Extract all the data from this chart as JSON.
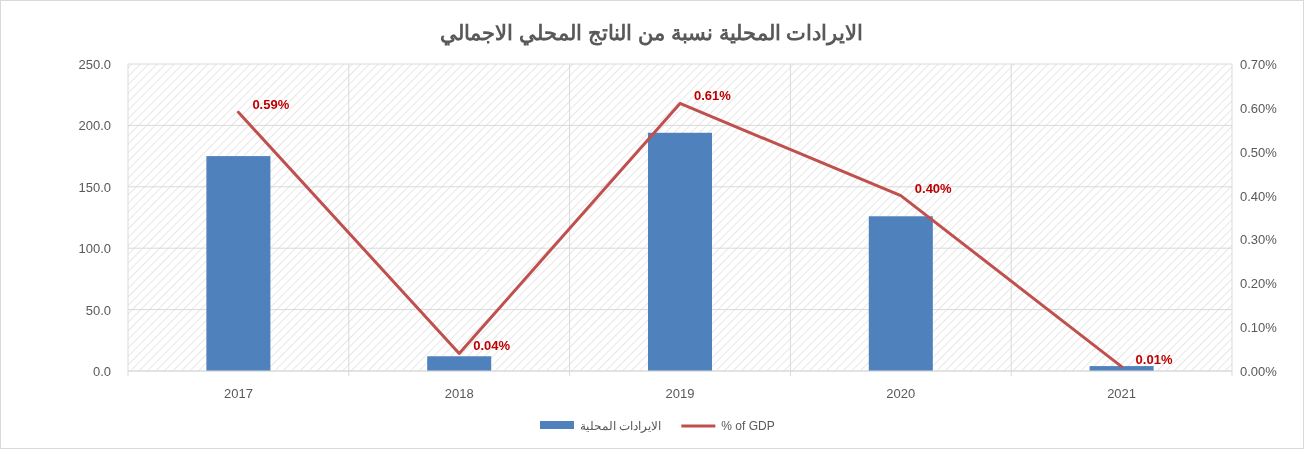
{
  "chart_data": {
    "type": "bar",
    "title": "الايرادات المحلية نسبة من الناتج المحلي الاجمالي",
    "categories": [
      "2017",
      "2018",
      "2019",
      "2020",
      "2021"
    ],
    "series": [
      {
        "name": "الايرادات المحلية",
        "color": "#4f81bd",
        "values": [
          175,
          12,
          194,
          126,
          4
        ]
      },
      {
        "name": "% of GDP",
        "type": "line",
        "axis": "y2",
        "color": "#c0504d",
        "values": [
          0.59,
          0.04,
          0.61,
          0.4,
          0.01
        ],
        "value_labels": [
          "0.59%",
          "0.04%",
          "0.61%",
          "0.40%",
          "0.01%"
        ]
      }
    ],
    "ylim": [
      0,
      250
    ],
    "yticks": [
      {
        "value": 0,
        "label": "0.0"
      },
      {
        "value": 50,
        "label": "50.0"
      },
      {
        "value": 100,
        "label": "100.0"
      },
      {
        "value": 150,
        "label": "150.0"
      },
      {
        "value": 200,
        "label": "200.0"
      },
      {
        "value": 250,
        "label": "250.0"
      }
    ],
    "y2lim": [
      0,
      0.7
    ],
    "y2ticks": [
      {
        "value": 0,
        "label": "0.00%"
      },
      {
        "value": 0.1,
        "label": "0.10%"
      },
      {
        "value": 0.2,
        "label": "0.20%"
      },
      {
        "value": 0.3,
        "label": "0.30%"
      },
      {
        "value": 0.4,
        "label": "0.40%"
      },
      {
        "value": 0.5,
        "label": "0.50%"
      },
      {
        "value": 0.6,
        "label": "0.60%"
      },
      {
        "value": 0.7,
        "label": "0.70%"
      }
    ],
    "grid": true,
    "legend": "bottom"
  }
}
